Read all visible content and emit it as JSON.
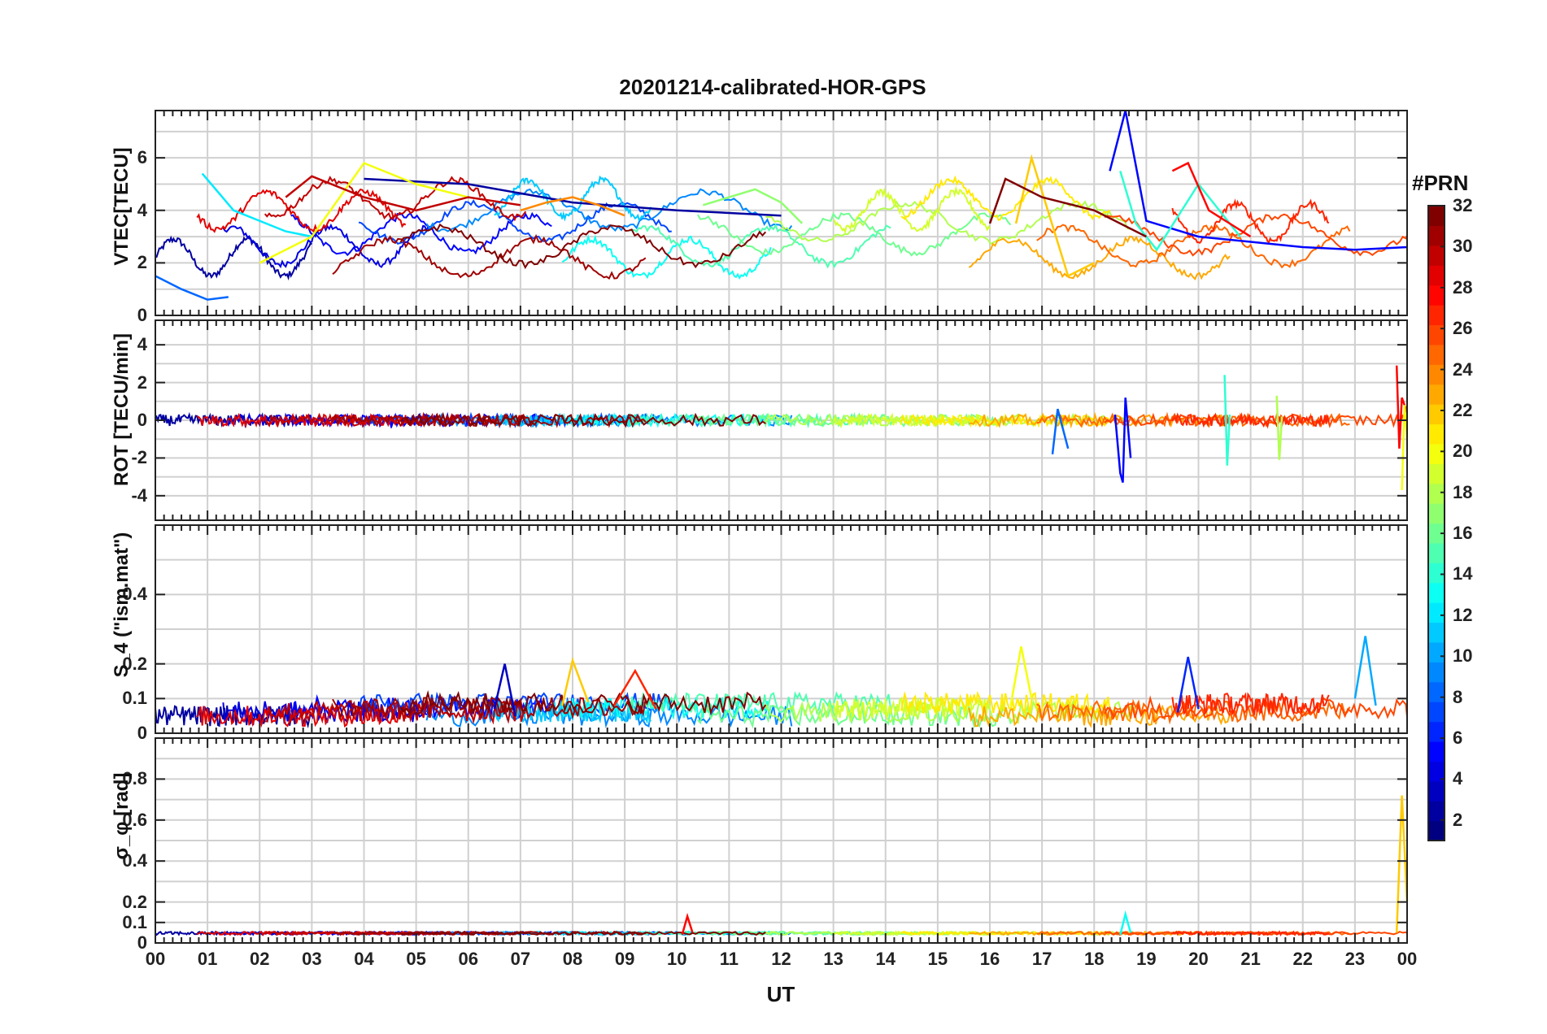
{
  "figure": {
    "title": "20201214-calibrated-HOR-GPS",
    "xlabel": "UT",
    "x_tick_labels": [
      "00",
      "01",
      "02",
      "03",
      "04",
      "05",
      "06",
      "07",
      "08",
      "09",
      "10",
      "11",
      "12",
      "13",
      "14",
      "15",
      "16",
      "17",
      "18",
      "19",
      "20",
      "21",
      "22",
      "23",
      "00"
    ]
  },
  "colorbar": {
    "title": "#PRN",
    "tick_labels": [
      "2",
      "4",
      "6",
      "8",
      "10",
      "12",
      "14",
      "16",
      "18",
      "20",
      "22",
      "24",
      "26",
      "28",
      "30",
      "32"
    ],
    "range": [
      1,
      32
    ],
    "colormap": "jet"
  },
  "chart_data": [
    {
      "type": "line",
      "panel": "vtec",
      "ylabel": "VTEC[TECU]",
      "xlim": [
        0,
        24
      ],
      "ylim": [
        0,
        7.8
      ],
      "y_tick_labels": [
        "0",
        "2",
        "4",
        "6"
      ],
      "series": [
        {
          "name": "PRN 2",
          "prn": 2,
          "x": [
            4.0,
            6.0,
            8.0,
            10.0,
            12.0
          ],
          "y": [
            5.2,
            5.0,
            4.3,
            4.0,
            3.8
          ]
        },
        {
          "name": "PRN 5",
          "prn": 5,
          "x": [
            18.3,
            18.6,
            19.0,
            20.0,
            21.0,
            22.0,
            23.0,
            24.0
          ],
          "y": [
            5.5,
            7.8,
            3.6,
            3.0,
            2.8,
            2.6,
            2.5,
            2.6
          ]
        },
        {
          "name": "PRN 8",
          "prn": 8,
          "x": [
            0.0,
            0.5,
            1.0,
            1.4
          ],
          "y": [
            1.5,
            1.0,
            0.6,
            0.7
          ]
        },
        {
          "name": "PRN 12",
          "prn": 12,
          "x": [
            0.9,
            1.5,
            2.5,
            3.0
          ],
          "y": [
            5.4,
            4.0,
            3.2,
            3.0
          ]
        },
        {
          "name": "PRN 14",
          "prn": 14,
          "x": [
            18.5,
            18.8,
            19.2,
            20.0,
            20.8
          ],
          "y": [
            5.5,
            3.5,
            2.5,
            5.0,
            3.0
          ]
        },
        {
          "name": "PRN 17",
          "prn": 17,
          "x": [
            10.5,
            11.5,
            12.0,
            12.4
          ],
          "y": [
            4.2,
            4.8,
            4.3,
            3.5
          ]
        },
        {
          "name": "PRN 20",
          "prn": 20,
          "x": [
            2.0,
            3.0,
            4.0,
            5.0,
            6.0
          ],
          "y": [
            2.0,
            3.0,
            5.8,
            5.0,
            4.5
          ]
        },
        {
          "name": "PRN 22",
          "prn": 22,
          "x": [
            16.5,
            16.8,
            17.5,
            18.0
          ],
          "y": [
            3.5,
            6.0,
            1.5,
            2.0
          ]
        },
        {
          "name": "PRN 24",
          "prn": 24,
          "x": [
            7.0,
            7.5,
            8.0,
            8.5,
            9.0
          ],
          "y": [
            4.0,
            4.3,
            4.5,
            4.2,
            3.8
          ]
        },
        {
          "name": "PRN 28",
          "prn": 28,
          "x": [
            19.5,
            19.8,
            20.2,
            21.0
          ],
          "y": [
            5.5,
            5.8,
            4.0,
            3.0
          ]
        },
        {
          "name": "PRN 30",
          "prn": 30,
          "x": [
            2.5,
            3.0,
            4.0,
            5.0,
            6.0,
            7.0
          ],
          "y": [
            4.5,
            5.3,
            4.5,
            4.0,
            4.5,
            4.2
          ]
        },
        {
          "name": "PRN 32",
          "prn": 32,
          "x": [
            16.0,
            16.3,
            17.0,
            18.0,
            19.0
          ],
          "y": [
            3.5,
            5.2,
            4.5,
            4.0,
            3.0
          ]
        }
      ]
    },
    {
      "type": "line",
      "panel": "rot",
      "ylabel": "ROT [TECU/min]",
      "xlim": [
        0,
        24
      ],
      "ylim": [
        -5.3,
        5.3
      ],
      "y_tick_labels": [
        "-4",
        "-2",
        "0",
        "2",
        "4"
      ],
      "series": [
        {
          "name": "PRN 5",
          "prn": 5,
          "x": [
            18.4,
            18.5,
            18.55,
            18.6,
            18.7
          ],
          "y": [
            0.3,
            -2.8,
            -3.3,
            1.2,
            -2.0
          ]
        },
        {
          "name": "PRN 8",
          "prn": 8,
          "x": [
            17.2,
            17.3,
            17.5
          ],
          "y": [
            -1.8,
            0.6,
            -1.5
          ]
        },
        {
          "name": "PRN 14",
          "prn": 14,
          "x": [
            20.5,
            20.55,
            20.6
          ],
          "y": [
            2.4,
            -2.4,
            0.3
          ]
        },
        {
          "name": "PRN 18",
          "prn": 18,
          "x": [
            21.5,
            21.55,
            21.6
          ],
          "y": [
            1.3,
            -2.1,
            0.2
          ]
        },
        {
          "name": "PRN 28",
          "prn": 28,
          "x": [
            23.8,
            23.85,
            23.9,
            24.0
          ],
          "y": [
            2.9,
            -1.5,
            1.2,
            0.4
          ]
        },
        {
          "name": "PRN 20",
          "prn": 20,
          "x": [
            23.9,
            23.95,
            24.0
          ],
          "y": [
            -3.7,
            0.8,
            -1.0
          ]
        }
      ]
    },
    {
      "type": "line",
      "panel": "s4",
      "ylabel": "S_4 (\"ism.mat\")",
      "xlim": [
        0,
        24
      ],
      "ylim": [
        0,
        0.6
      ],
      "y_tick_labels": [
        "0",
        "0.1",
        "0.2",
        "0.4"
      ],
      "series": [
        {
          "name": "PRN 3",
          "prn": 3,
          "x": [
            6.5,
            6.7,
            6.9
          ],
          "y": [
            0.07,
            0.2,
            0.05
          ]
        },
        {
          "name": "PRN 6",
          "prn": 6,
          "x": [
            19.6,
            19.8,
            20.0
          ],
          "y": [
            0.06,
            0.22,
            0.07
          ]
        },
        {
          "name": "PRN 10",
          "prn": 10,
          "x": [
            23.0,
            23.2,
            23.4
          ],
          "y": [
            0.1,
            0.28,
            0.08
          ]
        },
        {
          "name": "PRN 20",
          "prn": 20,
          "x": [
            16.4,
            16.6,
            16.8
          ],
          "y": [
            0.08,
            0.25,
            0.1
          ]
        },
        {
          "name": "PRN 22",
          "prn": 22,
          "x": [
            7.8,
            8.0,
            8.3
          ],
          "y": [
            0.08,
            0.21,
            0.09
          ]
        },
        {
          "name": "PRN 27",
          "prn": 27,
          "x": [
            8.8,
            9.2,
            9.6
          ],
          "y": [
            0.08,
            0.18,
            0.07
          ]
        }
      ]
    },
    {
      "type": "line",
      "panel": "sigma_phi",
      "ylabel": "σ_φ [rad]",
      "xlim": [
        0,
        24
      ],
      "ylim": [
        0,
        1.0
      ],
      "y_tick_labels": [
        "0",
        "0.1",
        "0.2",
        "0.4",
        "0.6",
        "0.8"
      ],
      "series": [
        {
          "name": "PRN 13",
          "prn": 13,
          "x": [
            18.5,
            18.6,
            18.7
          ],
          "y": [
            0.04,
            0.14,
            0.05
          ]
        },
        {
          "name": "PRN 28",
          "prn": 28,
          "x": [
            10.1,
            10.2,
            10.3
          ],
          "y": [
            0.04,
            0.13,
            0.05
          ]
        },
        {
          "name": "PRN 22",
          "prn": 22,
          "x": [
            23.8,
            23.9,
            24.0
          ],
          "y": [
            0.05,
            0.72,
            0.2
          ]
        }
      ]
    }
  ]
}
